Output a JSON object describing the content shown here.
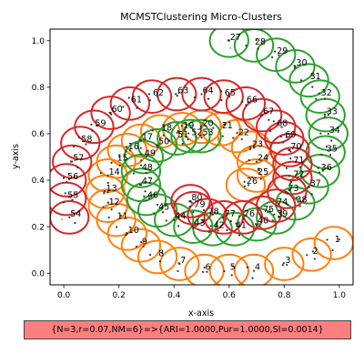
{
  "chart_data": {
    "type": "scatter",
    "title": "MCMSTClustering Micro-Clusters",
    "xlabel": "x-axis",
    "ylabel": "y-axis",
    "xlim": [
      -0.05,
      1.05
    ],
    "ylim": [
      -0.05,
      1.05
    ],
    "xticks": [
      "0.0",
      "0.2",
      "0.4",
      "0.6",
      "0.8",
      "1.0"
    ],
    "yticks": [
      "0.0",
      "0.2",
      "0.4",
      "0.6",
      "0.8",
      "1.0"
    ],
    "grid": false,
    "circle_radius": 0.07,
    "colors": {
      "orange": "#ff7f0e",
      "green": "#2ca02c",
      "red": "#d62728",
      "point": "#333333",
      "pale_point": "#aaaaaa"
    },
    "centers": [
      {
        "id": 1,
        "x": 0.98,
        "y": 0.13,
        "c": "orange"
      },
      {
        "id": 2,
        "x": 0.9,
        "y": 0.08,
        "c": "orange"
      },
      {
        "id": 3,
        "x": 0.8,
        "y": 0.04,
        "c": "orange"
      },
      {
        "id": 4,
        "x": 0.69,
        "y": 0.01,
        "c": "orange"
      },
      {
        "id": 5,
        "x": 0.6,
        "y": 0.01,
        "c": "orange"
      },
      {
        "id": 6,
        "x": 0.51,
        "y": 0.01,
        "c": "orange"
      },
      {
        "id": 7,
        "x": 0.42,
        "y": 0.04,
        "c": "orange"
      },
      {
        "id": 8,
        "x": 0.34,
        "y": 0.07,
        "c": "orange"
      },
      {
        "id": 9,
        "x": 0.28,
        "y": 0.12,
        "c": "orange"
      },
      {
        "id": 10,
        "x": 0.23,
        "y": 0.17,
        "c": "orange"
      },
      {
        "id": 11,
        "x": 0.19,
        "y": 0.23,
        "c": "orange"
      },
      {
        "id": 12,
        "x": 0.16,
        "y": 0.29,
        "c": "orange"
      },
      {
        "id": 13,
        "x": 0.15,
        "y": 0.35,
        "c": "orange"
      },
      {
        "id": 14,
        "x": 0.16,
        "y": 0.42,
        "c": "orange"
      },
      {
        "id": 15,
        "x": 0.19,
        "y": 0.48,
        "c": "orange"
      },
      {
        "id": 16,
        "x": 0.23,
        "y": 0.53,
        "c": "orange"
      },
      {
        "id": 17,
        "x": 0.28,
        "y": 0.57,
        "c": "orange"
      },
      {
        "id": 18,
        "x": 0.35,
        "y": 0.61,
        "c": "orange"
      },
      {
        "id": 19,
        "x": 0.43,
        "y": 0.62,
        "c": "orange"
      },
      {
        "id": 20,
        "x": 0.5,
        "y": 0.63,
        "c": "orange"
      },
      {
        "id": 21,
        "x": 0.57,
        "y": 0.62,
        "c": "orange"
      },
      {
        "id": 22,
        "x": 0.63,
        "y": 0.59,
        "c": "orange"
      },
      {
        "id": 23,
        "x": 0.68,
        "y": 0.54,
        "c": "orange"
      },
      {
        "id": 24,
        "x": 0.7,
        "y": 0.48,
        "c": "orange"
      },
      {
        "id": 25,
        "x": 0.7,
        "y": 0.42,
        "c": "orange"
      },
      {
        "id": 26,
        "x": 0.66,
        "y": 0.38,
        "c": "orange"
      },
      {
        "id": 27,
        "x": 0.6,
        "y": 1.0,
        "c": "green"
      },
      {
        "id": 28,
        "x": 0.69,
        "y": 0.98,
        "c": "green"
      },
      {
        "id": 29,
        "x": 0.77,
        "y": 0.94,
        "c": "green"
      },
      {
        "id": 30,
        "x": 0.84,
        "y": 0.89,
        "c": "green"
      },
      {
        "id": 31,
        "x": 0.89,
        "y": 0.83,
        "c": "green"
      },
      {
        "id": 32,
        "x": 0.93,
        "y": 0.76,
        "c": "green"
      },
      {
        "id": 33,
        "x": 0.95,
        "y": 0.68,
        "c": "green"
      },
      {
        "id": 34,
        "x": 0.96,
        "y": 0.6,
        "c": "green"
      },
      {
        "id": 35,
        "x": 0.95,
        "y": 0.52,
        "c": "green"
      },
      {
        "id": 36,
        "x": 0.93,
        "y": 0.44,
        "c": "green"
      },
      {
        "id": 37,
        "x": 0.89,
        "y": 0.37,
        "c": "green"
      },
      {
        "id": 38,
        "x": 0.84,
        "y": 0.3,
        "c": "green"
      },
      {
        "id": 39,
        "x": 0.77,
        "y": 0.24,
        "c": "green"
      },
      {
        "id": 40,
        "x": 0.7,
        "y": 0.21,
        "c": "green"
      },
      {
        "id": 41,
        "x": 0.62,
        "y": 0.19,
        "c": "green"
      },
      {
        "id": 42,
        "x": 0.54,
        "y": 0.19,
        "c": "green"
      },
      {
        "id": 43,
        "x": 0.47,
        "y": 0.2,
        "c": "green"
      },
      {
        "id": 44,
        "x": 0.4,
        "y": 0.23,
        "c": "green"
      },
      {
        "id": 45,
        "x": 0.34,
        "y": 0.27,
        "c": "green"
      },
      {
        "id": 46,
        "x": 0.3,
        "y": 0.32,
        "c": "green"
      },
      {
        "id": 47,
        "x": 0.28,
        "y": 0.38,
        "c": "green"
      },
      {
        "id": 48,
        "x": 0.28,
        "y": 0.44,
        "c": "green"
      },
      {
        "id": 49,
        "x": 0.29,
        "y": 0.5,
        "c": "green"
      },
      {
        "id": 50,
        "x": 0.34,
        "y": 0.55,
        "c": "green"
      },
      {
        "id": 51,
        "x": 0.41,
        "y": 0.58,
        "c": "green"
      },
      {
        "id": 52,
        "x": 0.46,
        "y": 0.59,
        "c": "green"
      },
      {
        "id": 53,
        "x": 0.5,
        "y": 0.59,
        "c": "green"
      },
      {
        "id": 54,
        "x": 0.02,
        "y": 0.24,
        "c": "red"
      },
      {
        "id": 55,
        "x": 0.01,
        "y": 0.32,
        "c": "red"
      },
      {
        "id": 56,
        "x": 0.01,
        "y": 0.4,
        "c": "red"
      },
      {
        "id": 57,
        "x": 0.03,
        "y": 0.48,
        "c": "red"
      },
      {
        "id": 58,
        "x": 0.06,
        "y": 0.56,
        "c": "red"
      },
      {
        "id": 59,
        "x": 0.11,
        "y": 0.63,
        "c": "red"
      },
      {
        "id": 60,
        "x": 0.17,
        "y": 0.69,
        "c": "red"
      },
      {
        "id": 61,
        "x": 0.24,
        "y": 0.73,
        "c": "red"
      },
      {
        "id": 62,
        "x": 0.32,
        "y": 0.76,
        "c": "red"
      },
      {
        "id": 63,
        "x": 0.41,
        "y": 0.77,
        "c": "red"
      },
      {
        "id": 64,
        "x": 0.5,
        "y": 0.77,
        "c": "red"
      },
      {
        "id": 65,
        "x": 0.58,
        "y": 0.76,
        "c": "red"
      },
      {
        "id": 66,
        "x": 0.66,
        "y": 0.73,
        "c": "red"
      },
      {
        "id": 67,
        "x": 0.72,
        "y": 0.68,
        "c": "red"
      },
      {
        "id": 68,
        "x": 0.77,
        "y": 0.63,
        "c": "red"
      },
      {
        "id": 69,
        "x": 0.8,
        "y": 0.58,
        "c": "red"
      },
      {
        "id": 70,
        "x": 0.82,
        "y": 0.53,
        "c": "red"
      },
      {
        "id": 71,
        "x": 0.83,
        "y": 0.47,
        "c": "red"
      },
      {
        "id": 72,
        "x": 0.83,
        "y": 0.41,
        "c": "red"
      },
      {
        "id": 73,
        "x": 0.81,
        "y": 0.35,
        "c": "red"
      },
      {
        "id": 74,
        "x": 0.77,
        "y": 0.29,
        "c": "red"
      },
      {
        "id": 75,
        "x": 0.72,
        "y": 0.26,
        "c": "red"
      },
      {
        "id": 76,
        "x": 0.65,
        "y": 0.24,
        "c": "red"
      },
      {
        "id": 77,
        "x": 0.58,
        "y": 0.24,
        "c": "red"
      },
      {
        "id": 78,
        "x": 0.52,
        "y": 0.25,
        "c": "red"
      },
      {
        "id": 79,
        "x": 0.47,
        "y": 0.28,
        "c": "red"
      },
      {
        "id": 80,
        "x": 0.46,
        "y": 0.31,
        "c": "red"
      }
    ]
  },
  "result_text": "{N=3,r=0.07,NM=6}=>{ARI=1.0000,Pur=1.0000,SI=0.0014}"
}
